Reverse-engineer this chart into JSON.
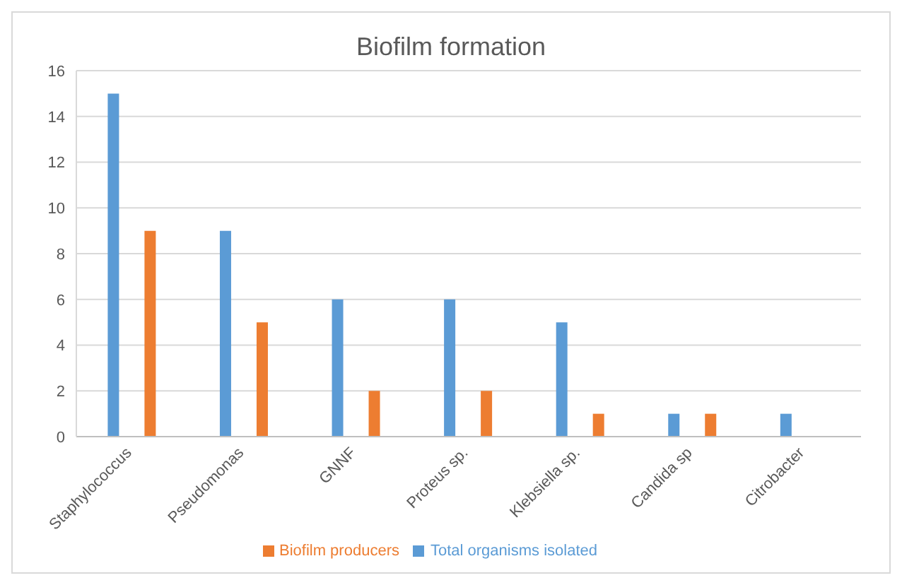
{
  "chart_data": {
    "type": "bar",
    "title": "Biofilm formation",
    "categories": [
      "Staphylococcus",
      "Pseudomonas",
      "GNNF",
      "Proteus sp.",
      "Klebsiella sp.",
      "Candida sp",
      "Citrobacter"
    ],
    "series": [
      {
        "name": "Total organisms isolated",
        "color": "#5b9bd5",
        "values": [
          15,
          9,
          6,
          6,
          5,
          1,
          1
        ]
      },
      {
        "name": "Biofilm producers",
        "color": "#ed7d31",
        "values": [
          9,
          5,
          2,
          2,
          1,
          1,
          0
        ]
      }
    ],
    "ylim": [
      0,
      16
    ],
    "yticks": [
      0,
      2,
      4,
      6,
      8,
      10,
      12,
      14,
      16
    ],
    "grid": "y",
    "legend": "bottom"
  }
}
